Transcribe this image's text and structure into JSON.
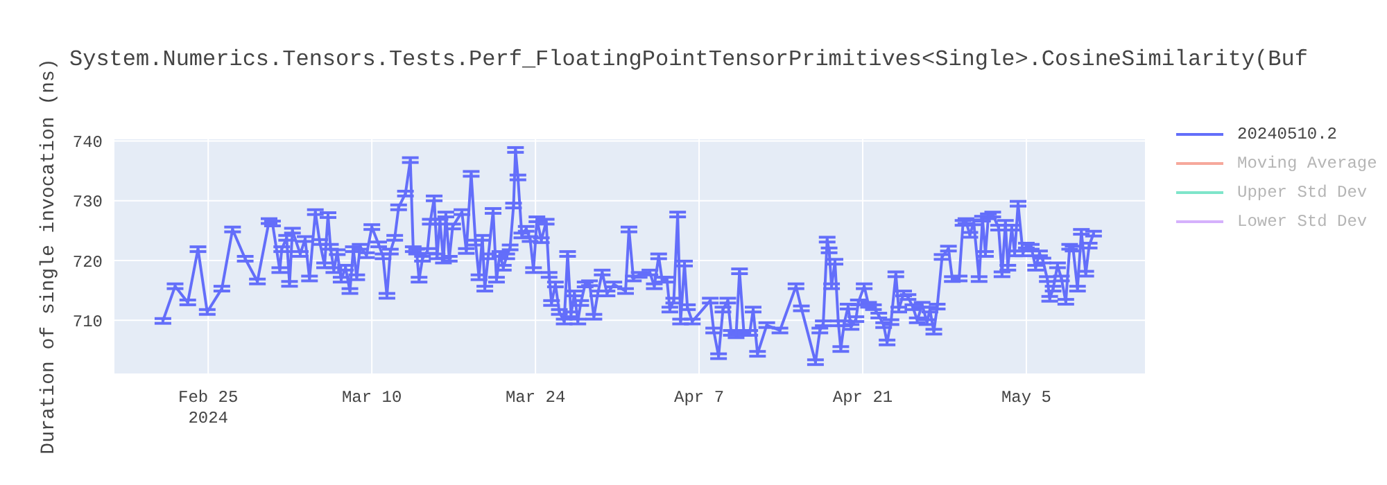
{
  "chart_data": {
    "type": "line",
    "title": "System.Numerics.Tensors.Tests.Perf_FloatingPointTensorPrimitives<Single>.CosineSimilarity(Buf",
    "ylabel": "Duration of single invocation (ns)",
    "x": [
      "2024-02-21T03:00",
      "2024-02-22T04:00",
      "2024-02-23T06:00",
      "2024-02-24T03:00",
      "2024-02-24T22:00",
      "2024-02-26T04:00",
      "2024-02-27T02:00",
      "2024-02-28T04:00",
      "2024-02-29T05:00",
      "2024-03-01T05:00",
      "2024-03-01T12:00",
      "2024-03-02T03:00",
      "2024-03-02T07:00",
      "2024-03-02T17:00",
      "2024-03-02T23:00",
      "2024-03-03T05:00",
      "2024-03-03T21:00",
      "2024-03-04T07:00",
      "2024-03-04T16:00",
      "2024-03-05T04:00",
      "2024-03-05T13:00",
      "2024-03-05T23:00",
      "2024-03-06T06:00",
      "2024-03-06T11:00",
      "2024-03-06T18:00",
      "2024-03-07T01:00",
      "2024-03-07T09:00",
      "2024-03-07T18:00",
      "2024-03-08T03:00",
      "2024-03-08T10:00",
      "2024-03-08T17:00",
      "2024-03-09T00:00",
      "2024-03-09T13:00",
      "2024-03-10T00:00",
      "2024-03-10T14:00",
      "2024-03-10T23:00",
      "2024-03-11T07:00",
      "2024-03-11T14:00",
      "2024-03-11T23:00",
      "2024-03-12T07:00",
      "2024-03-12T21:00",
      "2024-03-13T07:00",
      "2024-03-13T13:00",
      "2024-03-13T20:00",
      "2024-03-14T01:00",
      "2024-03-14T08:00",
      "2024-03-14T18:00",
      "2024-03-15T00:00",
      "2024-03-15T08:00",
      "2024-03-15T14:00",
      "2024-03-15T20:00",
      "2024-03-16T03:00",
      "2024-03-16T08:00",
      "2024-03-16T15:00",
      "2024-03-16T22:00",
      "2024-03-17T17:00",
      "2024-03-18T02:00",
      "2024-03-18T12:00",
      "2024-03-18T21:00",
      "2024-03-19T04:00",
      "2024-03-19T11:00",
      "2024-03-19T16:00",
      "2024-03-19T23:00",
      "2024-03-20T09:00",
      "2024-03-20T16:00",
      "2024-03-20T23:00",
      "2024-03-21T06:00",
      "2024-03-21T13:00",
      "2024-03-21T20:00",
      "2024-03-22T03:00",
      "2024-03-22T07:00",
      "2024-03-22T12:00",
      "2024-03-22T20:00",
      "2024-03-23T05:00",
      "2024-03-23T13:00",
      "2024-03-23T20:00",
      "2024-03-24T03:00",
      "2024-03-24T12:00",
      "2024-03-24T22:00",
      "2024-03-25T04:00",
      "2024-03-25T09:00",
      "2024-03-25T17:00",
      "2024-03-26T01:00",
      "2024-03-26T11:00",
      "2024-03-26T18:00",
      "2024-03-27T01:00",
      "2024-03-27T08:00",
      "2024-03-27T15:00",
      "2024-03-27T21:00",
      "2024-03-28T06:00",
      "2024-03-28T15:00",
      "2024-03-29T00:00",
      "2024-03-29T08:00",
      "2024-03-29T17:00",
      "2024-03-30T03:00",
      "2024-03-30T17:00",
      "2024-03-31T17:00",
      "2024-04-01T00:00",
      "2024-04-01T09:00",
      "2024-04-01T21:00",
      "2024-04-02T19:00",
      "2024-04-03T04:00",
      "2024-04-03T13:00",
      "2024-04-03T20:00",
      "2024-04-04T06:00",
      "2024-04-04T12:00",
      "2024-04-04T20:00",
      "2024-04-05T04:00",
      "2024-04-05T10:00",
      "2024-04-05T18:00",
      "2024-04-06T00:00",
      "2024-04-06T10:00",
      "2024-04-07T23:00",
      "2024-04-08T06:00",
      "2024-04-08T16:00",
      "2024-04-09T01:00",
      "2024-04-09T11:00",
      "2024-04-09T18:00",
      "2024-04-10T04:00",
      "2024-04-10T11:00",
      "2024-04-10T20:00",
      "2024-04-11T08:00",
      "2024-04-11T15:00",
      "2024-04-12T00:00",
      "2024-04-12T19:00",
      "2024-04-13T22:00",
      "2024-04-15T07:00",
      "2024-04-15T18:00",
      "2024-04-16T23:00",
      "2024-04-17T08:00",
      "2024-04-17T15:00",
      "2024-04-17T23:00",
      "2024-04-18T03:00",
      "2024-04-18T08:00",
      "2024-04-18T15:00",
      "2024-04-18T22:00",
      "2024-04-19T03:00",
      "2024-04-19T10:00",
      "2024-04-19T18:00",
      "2024-04-20T00:00",
      "2024-04-20T10:00",
      "2024-04-20T15:00",
      "2024-04-21T03:00",
      "2024-04-21T12:00",
      "2024-04-21T22:00",
      "2024-04-22T09:00",
      "2024-04-22T19:00",
      "2024-04-23T02:00",
      "2024-04-23T10:00",
      "2024-04-23T20:00",
      "2024-04-24T02:00",
      "2024-04-24T12:00",
      "2024-04-24T21:00",
      "2024-04-25T07:00",
      "2024-04-25T16:00",
      "2024-04-26T02:00",
      "2024-04-26T12:00",
      "2024-04-26T18:00",
      "2024-04-27T02:00",
      "2024-04-27T09:00",
      "2024-04-27T19:00",
      "2024-04-28T08:00",
      "2024-04-28T16:00",
      "2024-04-29T06:00",
      "2024-04-29T14:00",
      "2024-04-29T20:00",
      "2024-04-30T04:00",
      "2024-04-30T12:00",
      "2024-04-30T23:00",
      "2024-05-01T06:00",
      "2024-05-01T12:00",
      "2024-05-01T18:00",
      "2024-05-02T03:00",
      "2024-05-02T15:00",
      "2024-05-02T22:00",
      "2024-05-03T05:00",
      "2024-05-03T10:00",
      "2024-05-03T18:00",
      "2024-05-04T00:00",
      "2024-05-04T07:00",
      "2024-05-04T17:00",
      "2024-05-05T00:00",
      "2024-05-05T10:00",
      "2024-05-05T19:00",
      "2024-05-06T03:00",
      "2024-05-06T10:00",
      "2024-05-06T19:00",
      "2024-05-07T00:00",
      "2024-05-07T07:00",
      "2024-05-07T16:00",
      "2024-05-08T00:00",
      "2024-05-08T09:00",
      "2024-05-08T17:00",
      "2024-05-09T00:00",
      "2024-05-09T09:00",
      "2024-05-09T17:00",
      "2024-05-10T02:00",
      "2024-05-10T09:00",
      "2024-05-10T18:00"
    ],
    "series": [
      {
        "name": "20240510.2",
        "color": "#636efa",
        "values": [
          709.9,
          715.7,
          713,
          721.9,
          711.4,
          715.3,
          725.2,
          720.3,
          716.5,
          726.6,
          726.2,
          718.4,
          721.9,
          723.8,
          716.1,
          725,
          721.1,
          723.6,
          717,
          728.1,
          723.1,
          719.2,
          727.6,
          722.3,
          718.4,
          721.4,
          716.8,
          718.8,
          714.9,
          721.9,
          717.2,
          722.3,
          720.9,
          725.6,
          722.7,
          720.7,
          714.1,
          721.5,
          723.8,
          728.9,
          731.2,
          736.8,
          721.9,
          721.5,
          716.8,
          720.3,
          721.6,
          726.5,
          730.4,
          720.7,
          726.5,
          720,
          727.7,
          720.3,
          725.7,
          728.1,
          721.6,
          734.5,
          723,
          717.2,
          723.8,
          715.3,
          720.7,
          728.3,
          716.8,
          721.1,
          718.8,
          720.7,
          722.2,
          729.2,
          738.5,
          733.9,
          724.2,
          725.3,
          723.6,
          718.4,
          726.9,
          723.4,
          726.5,
          717.6,
          712.9,
          716,
          711.4,
          709.8,
          721.1,
          711,
          714.5,
          709.8,
          712.9,
          716,
          716.2,
          710.6,
          714.5,
          718,
          714.5,
          716,
          714.9,
          725.2,
          717,
          717.6,
          718,
          715.7,
          720.7,
          716.8,
          716.8,
          711.8,
          713.3,
          727.7,
          709.8,
          719.5,
          712.2,
          709.8,
          713.3,
          708.3,
          704,
          711.8,
          713.3,
          707.9,
          707.5,
          718.2,
          707.9,
          707.9,
          711.8,
          704.4,
          709.2,
          708.3,
          715.7,
          712,
          703,
          708.3,
          709.5,
          723.5,
          721.7,
          715.7,
          719.8,
          709.5,
          705.2,
          709.5,
          712.3,
          708.9,
          710.2,
          713,
          715.7,
          712.6,
          712.2,
          710.8,
          709.2,
          706.3,
          709.7,
          717.7,
          711.8,
          714.5,
          713.9,
          712.2,
          710,
          712.6,
          709.7,
          711.8,
          708.1,
          712.3,
          720.6,
          722,
          716.9,
          717,
          726.3,
          726.6,
          724.3,
          726.4,
          716.9,
          727,
          721.1,
          727.4,
          727.7,
          725.5,
          717.7,
          726.3,
          718.8,
          725.5,
          721.2,
          729.5,
          721.2,
          722.5,
          722.3,
          718.8,
          721.2,
          720,
          716.9,
          713.6,
          715.3,
          719.2,
          717,
          713.1,
          722.3,
          722,
          715.3,
          724.8,
          717.8,
          722.5,
          724.5
        ],
        "errors": [
          0.4,
          0.4,
          0.4,
          0.4,
          0.4,
          0.4,
          0.4,
          0.4,
          0.4,
          0.4,
          0.4,
          0.4,
          0.4,
          0.4,
          0.4,
          0.4,
          0.4,
          0.4,
          0.4,
          0.4,
          0.4,
          0.4,
          0.4,
          0.4,
          0.4,
          0.4,
          0.4,
          0.4,
          0.4,
          0.4,
          0.4,
          0.4,
          0.4,
          0.4,
          0.4,
          0.4,
          0.4,
          0.4,
          0.4,
          0.4,
          0.4,
          0.4,
          0.4,
          0.4,
          0.4,
          0.4,
          0.4,
          0.4,
          0.4,
          0.4,
          0.4,
          0.4,
          0.4,
          0.4,
          0.4,
          0.4,
          0.4,
          0.4,
          0.4,
          0.4,
          0.4,
          0.4,
          0.4,
          0.4,
          0.4,
          0.4,
          0.4,
          0.4,
          0.4,
          0.4,
          0.4,
          0.4,
          0.4,
          0.4,
          0.4,
          0.4,
          0.4,
          0.4,
          0.4,
          0.4,
          0.4,
          0.4,
          0.4,
          0.4,
          0.4,
          0.4,
          0.4,
          0.4,
          0.4,
          0.4,
          0.4,
          0.4,
          0.4,
          0.4,
          0.4,
          0.4,
          0.4,
          0.4,
          0.4,
          0.4,
          0.4,
          0.4,
          0.4,
          0.4,
          0.4,
          0.4,
          0.4,
          0.4,
          0.4,
          0.4,
          0.4,
          0.4,
          0.4,
          0.4,
          0.4,
          0.4,
          0.4,
          0.4,
          0.4,
          0.4,
          0.4,
          0.4,
          0.4,
          0.4,
          0.4,
          0.4,
          0.4,
          0.4,
          0.4,
          0.4,
          0.4,
          0.4,
          0.4,
          0.4,
          0.4,
          0.4,
          0.4,
          0.4,
          0.4,
          0.4,
          0.4,
          0.4,
          0.4,
          0.4,
          0.4,
          0.4,
          0.4,
          0.4,
          0.4,
          0.4,
          0.4,
          0.4,
          0.4,
          0.4,
          0.4,
          0.4,
          0.4,
          0.4,
          0.4,
          0.4,
          0.4,
          0.4,
          0.4,
          0.4,
          0.4,
          0.4,
          0.4,
          0.4,
          0.4,
          0.4,
          0.4,
          0.4,
          0.4,
          0.4,
          0.4,
          0.4,
          0.4,
          0.4,
          0.4,
          0.4,
          0.4,
          0.4,
          0.4,
          0.4,
          0.4,
          0.4,
          0.4,
          0.4,
          0.4,
          0.4,
          0.4,
          0.4,
          0.4,
          0.4,
          0.4,
          0.4,
          0.4,
          0.4,
          0.4
        ]
      },
      {
        "name": "Moving Average",
        "color": "#f6a89c",
        "values": [
          null,
          null,
          null,
          null,
          null,
          null,
          null,
          null,
          null,
          null,
          null,
          null,
          null,
          null,
          null,
          null,
          null,
          null,
          null,
          null,
          null,
          null,
          null,
          null,
          null,
          null,
          null,
          null,
          null,
          null,
          null,
          null,
          null,
          null,
          null,
          null,
          null,
          null,
          null,
          null,
          null,
          null,
          null,
          null,
          null,
          null,
          null,
          null,
          null,
          null,
          null,
          null,
          null,
          null,
          null,
          null,
          null,
          null,
          null,
          null,
          null,
          null,
          null,
          null,
          null,
          null,
          null,
          null,
          null,
          null,
          null,
          null,
          null,
          null,
          null,
          null,
          null,
          null,
          null,
          null,
          null,
          null,
          null,
          null,
          null,
          null,
          null,
          null,
          null,
          null,
          null,
          null,
          null,
          null,
          null,
          null,
          null,
          null,
          null,
          null,
          null,
          null,
          null,
          null,
          null,
          null,
          null,
          null,
          null,
          null,
          null,
          null,
          null,
          null,
          null,
          null,
          null,
          null,
          null,
          null,
          null,
          null,
          null,
          null,
          null,
          null,
          null,
          null,
          null,
          null,
          null,
          null,
          null,
          null,
          null,
          null,
          null,
          null,
          null,
          null,
          null,
          null,
          null,
          null,
          null,
          null,
          null,
          null,
          null,
          null,
          null,
          null,
          null,
          null,
          null,
          null,
          null,
          null,
          null,
          null,
          null,
          null,
          null,
          null,
          null,
          null,
          null,
          null,
          null,
          null,
          null,
          null,
          null,
          null,
          null,
          null,
          null,
          null,
          null,
          null,
          null,
          null,
          null,
          null,
          null,
          null,
          null,
          null,
          null,
          null,
          null,
          null,
          null,
          null,
          null,
          null,
          null,
          null,
          null
        ]
      },
      {
        "name": "Upper Std Dev",
        "color": "#7fe5ca",
        "values": [
          null,
          null,
          null,
          null,
          null,
          null,
          null,
          null,
          null,
          null,
          null,
          null,
          null,
          null,
          null,
          null,
          null,
          null,
          null,
          null,
          null,
          null,
          null,
          null,
          null,
          null,
          null,
          null,
          null,
          null,
          null,
          null,
          null,
          null,
          null,
          null,
          null,
          null,
          null,
          null,
          null,
          null,
          null,
          null,
          null,
          null,
          null,
          null,
          null,
          null,
          null,
          null,
          null,
          null,
          null,
          null,
          null,
          null,
          null,
          null,
          null,
          null,
          null,
          null,
          null,
          null,
          null,
          null,
          null,
          null,
          null,
          null,
          null,
          null,
          null,
          null,
          null,
          null,
          null,
          null,
          null,
          null,
          null,
          null,
          null,
          null,
          null,
          null,
          null,
          null,
          null,
          null,
          null,
          null,
          null,
          null,
          null,
          null,
          null,
          null,
          null,
          null,
          null,
          null,
          null,
          null,
          null,
          null,
          null,
          null,
          null,
          null,
          null,
          null,
          null,
          null,
          null,
          null,
          null,
          null,
          null,
          null,
          null,
          null,
          null,
          null,
          null,
          null,
          null,
          null,
          null,
          null,
          null,
          null,
          null,
          null,
          null,
          null,
          null,
          null,
          null,
          null,
          null,
          null,
          null,
          null,
          null,
          null,
          null,
          null,
          null,
          null,
          null,
          null,
          null,
          null,
          null,
          null,
          null,
          null,
          null,
          null,
          null,
          null,
          null,
          null,
          null,
          null,
          null,
          null,
          null,
          null,
          null,
          null,
          null,
          null,
          null,
          null,
          null,
          null,
          null,
          null,
          null,
          null,
          null,
          null,
          null,
          null,
          null,
          null,
          null,
          null,
          null,
          null,
          null,
          null,
          null,
          null,
          null
        ]
      },
      {
        "name": "Lower Std Dev",
        "color": "#d5b1fc",
        "values": [
          null,
          null,
          null,
          null,
          null,
          null,
          null,
          null,
          null,
          null,
          null,
          null,
          null,
          null,
          null,
          null,
          null,
          null,
          null,
          null,
          null,
          null,
          null,
          null,
          null,
          null,
          null,
          null,
          null,
          null,
          null,
          null,
          null,
          null,
          null,
          null,
          null,
          null,
          null,
          null,
          null,
          null,
          null,
          null,
          null,
          null,
          null,
          null,
          null,
          null,
          null,
          null,
          null,
          null,
          null,
          null,
          null,
          null,
          null,
          null,
          null,
          null,
          null,
          null,
          null,
          null,
          null,
          null,
          null,
          null,
          null,
          null,
          null,
          null,
          null,
          null,
          null,
          null,
          null,
          null,
          null,
          null,
          null,
          null,
          null,
          null,
          null,
          null,
          null,
          null,
          null,
          null,
          null,
          null,
          null,
          null,
          null,
          null,
          null,
          null,
          null,
          null,
          null,
          null,
          null,
          null,
          null,
          null,
          null,
          null,
          null,
          null,
          null,
          null,
          null,
          null,
          null,
          null,
          null,
          null,
          null,
          null,
          null,
          null,
          null,
          null,
          null,
          null,
          null,
          null,
          null,
          null,
          null,
          null,
          null,
          null,
          null,
          null,
          null,
          null,
          null,
          null,
          null,
          null,
          null,
          null,
          null,
          null,
          null,
          null,
          null,
          null,
          null,
          null,
          null,
          null,
          null,
          null,
          null,
          null,
          null,
          null,
          null,
          null,
          null,
          null,
          null,
          null,
          null,
          null,
          null,
          null,
          null,
          null,
          null,
          null,
          null,
          null,
          null,
          null,
          null,
          null,
          null,
          null,
          null,
          null,
          null,
          null,
          null,
          null,
          null,
          null,
          null,
          null,
          null,
          null,
          null,
          null,
          null
        ]
      }
    ],
    "xlim": [
      "2024-02-16T22:00",
      "2024-05-15T05:00"
    ],
    "xticks": [
      {
        "value": "2024-02-25",
        "label": "Feb 25\n2024"
      },
      {
        "value": "2024-03-10",
        "label": "Mar 10"
      },
      {
        "value": "2024-03-24",
        "label": "Mar 24"
      },
      {
        "value": "2024-04-07",
        "label": "Apr 7"
      },
      {
        "value": "2024-04-21",
        "label": "Apr 21"
      },
      {
        "value": "2024-05-05",
        "label": "May 5"
      }
    ],
    "ylim": [
      701,
      740.4
    ],
    "yticks": [
      710,
      720,
      730,
      740
    ],
    "grid": true,
    "legend": "top right"
  }
}
